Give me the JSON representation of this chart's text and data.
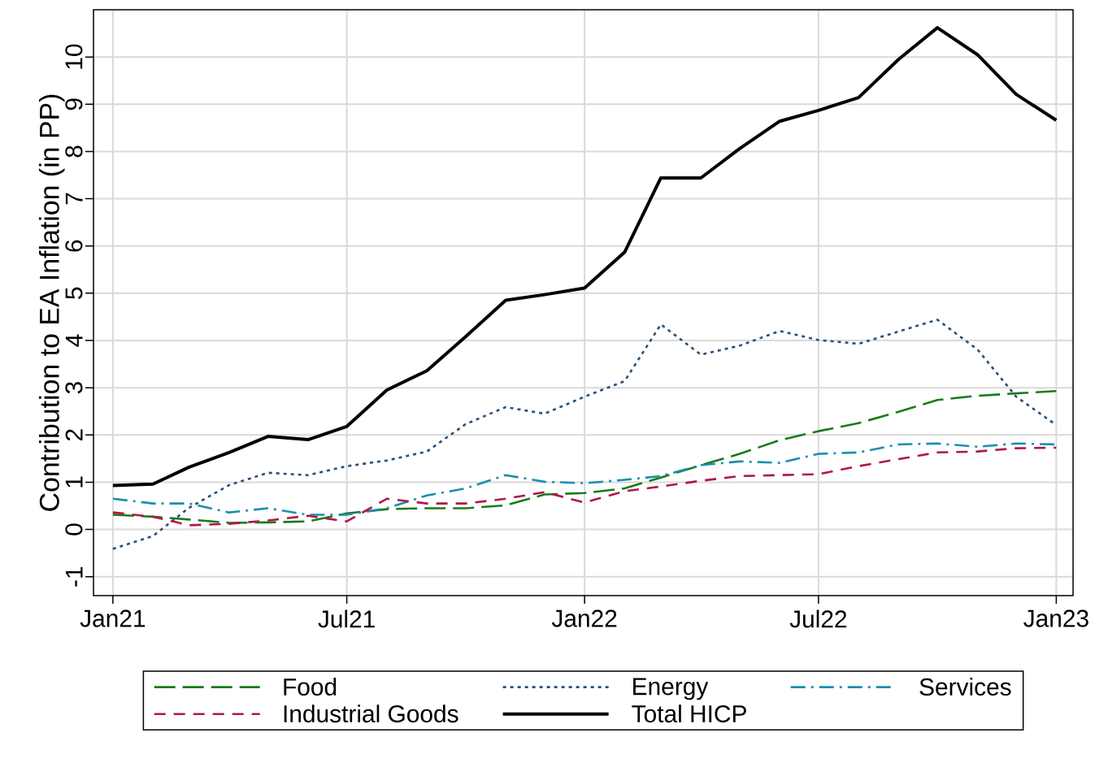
{
  "chart_data": {
    "type": "line",
    "ylabel": "Contribution to EA Inflation (in PP)",
    "x": [
      "2021-01",
      "2021-02",
      "2021-03",
      "2021-04",
      "2021-05",
      "2021-06",
      "2021-07",
      "2021-08",
      "2021-09",
      "2021-10",
      "2021-11",
      "2021-12",
      "2022-01",
      "2022-02",
      "2022-03",
      "2022-04",
      "2022-05",
      "2022-06",
      "2022-07",
      "2022-08",
      "2022-09",
      "2022-10",
      "2022-11",
      "2022-12",
      "2023-01"
    ],
    "series": [
      {
        "name": "Food",
        "color": "#1a7a1a",
        "line_style": "long dashed",
        "values": [
          0.31,
          0.27,
          0.21,
          0.14,
          0.15,
          0.17,
          0.34,
          0.43,
          0.45,
          0.45,
          0.51,
          0.74,
          0.77,
          0.87,
          1.1,
          1.36,
          1.6,
          1.89,
          2.08,
          2.25,
          2.49,
          2.74,
          2.83,
          2.88,
          2.93
        ]
      },
      {
        "name": "Energy",
        "color": "#2a4f7a",
        "line_style": "dotted",
        "values": [
          -0.41,
          -0.14,
          0.46,
          0.94,
          1.2,
          1.15,
          1.34,
          1.46,
          1.65,
          2.23,
          2.59,
          2.45,
          2.81,
          3.14,
          4.34,
          3.7,
          3.89,
          4.2,
          4.01,
          3.93,
          4.19,
          4.44,
          3.81,
          2.81,
          2.21
        ]
      },
      {
        "name": "Services",
        "color": "#1a8fb0",
        "line_style": "dashdot",
        "values": [
          0.65,
          0.55,
          0.55,
          0.36,
          0.45,
          0.31,
          0.31,
          0.45,
          0.72,
          0.87,
          1.15,
          1.01,
          0.98,
          1.05,
          1.13,
          1.36,
          1.44,
          1.41,
          1.6,
          1.63,
          1.8,
          1.82,
          1.75,
          1.82,
          1.8
        ]
      },
      {
        "name": "Industrial Goods",
        "color": "#b0174a",
        "line_style": "dashed",
        "values": [
          0.36,
          0.27,
          0.09,
          0.12,
          0.19,
          0.29,
          0.17,
          0.65,
          0.55,
          0.55,
          0.65,
          0.79,
          0.57,
          0.81,
          0.91,
          1.03,
          1.13,
          1.15,
          1.17,
          1.34,
          1.49,
          1.63,
          1.65,
          1.72,
          1.73
        ]
      },
      {
        "name": "Total HICP",
        "color": "#000000",
        "line_style": "solid",
        "values": [
          0.93,
          0.96,
          1.32,
          1.63,
          1.97,
          1.9,
          2.18,
          2.95,
          3.36,
          4.08,
          4.85,
          4.97,
          5.11,
          5.87,
          7.44,
          7.44,
          8.06,
          8.64,
          8.87,
          9.14,
          9.95,
          10.62,
          10.05,
          9.21,
          8.66
        ]
      }
    ],
    "xlim": [
      "2020-12-17",
      "2023-01-14"
    ],
    "xticks": [
      {
        "value": "2021-01",
        "label": "Jan21"
      },
      {
        "value": "2021-07",
        "label": "Jul21"
      },
      {
        "value": "2022-01",
        "label": "Jan22"
      },
      {
        "value": "2022-07",
        "label": "Jul22"
      },
      {
        "value": "2023-01",
        "label": "Jan23"
      }
    ],
    "ylim": [
      -1.4,
      11
    ],
    "yticks": [
      -1,
      0,
      1,
      2,
      3,
      4,
      5,
      6,
      7,
      8,
      9,
      10
    ],
    "grid": true,
    "legend": "bottom",
    "marker": "none"
  }
}
